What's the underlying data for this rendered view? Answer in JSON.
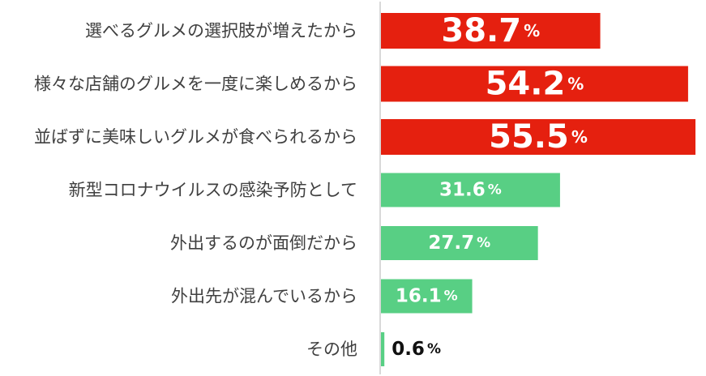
{
  "colors": {
    "highlight": "#e5200f",
    "normal": "#58cf84",
    "axis": "#d9d9d9",
    "label": "#404040"
  },
  "chart_data": {
    "type": "bar",
    "orientation": "horizontal",
    "title": "",
    "xlabel": "",
    "ylabel": "",
    "xlim": [
      0,
      55.5
    ],
    "grid": false,
    "legend": "none",
    "unit": "%",
    "categories": [
      "選べるグルメの選択肢が増えたから",
      "様々な店舗のグルメを一度に楽しめるから",
      "並ばずに美味しいグルメが食べられるから",
      "新型コロナウイルスの感染予防として",
      "外出するのが面倒だから",
      "外出先が混んでいるから",
      "その他"
    ],
    "values": [
      38.7,
      54.2,
      55.5,
      31.6,
      27.7,
      16.1,
      0.6
    ],
    "value_labels": [
      "38.7",
      "54.2",
      "55.5",
      "31.6",
      "27.7",
      "16.1",
      "0.6"
    ],
    "highlighted": [
      true,
      true,
      true,
      false,
      false,
      false,
      false
    ]
  }
}
